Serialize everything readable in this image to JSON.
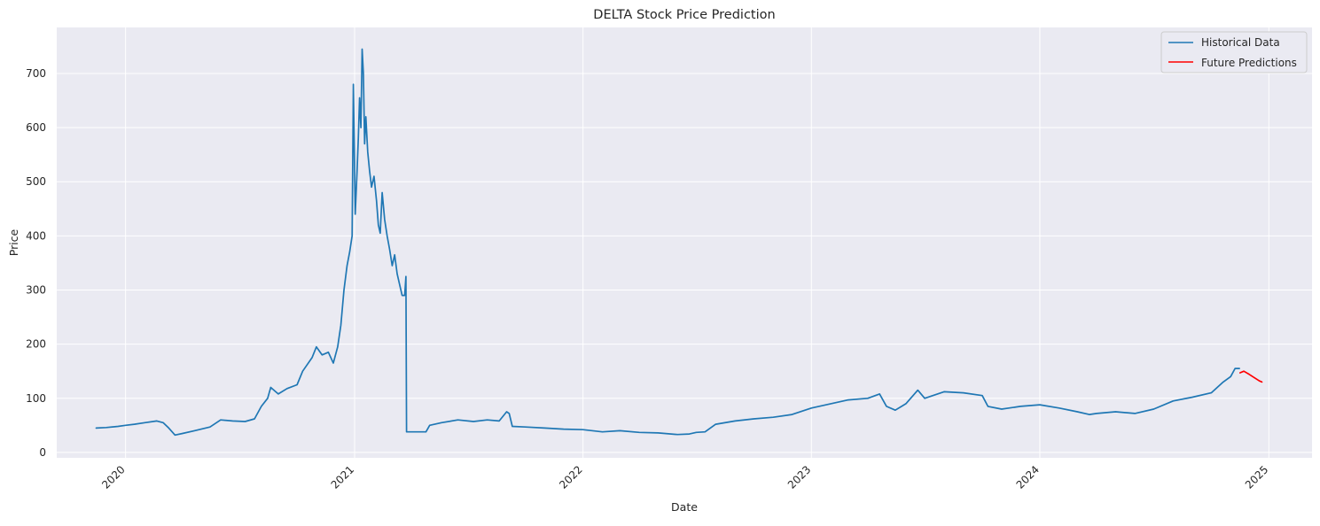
{
  "chart_data": {
    "type": "line",
    "title": "DELTA Stock Price Prediction",
    "xlabel": "Date",
    "ylabel": "Price",
    "x_type": "date",
    "xlim": [
      "2019-09-13",
      "2025-03-11"
    ],
    "ylim": [
      -10,
      785
    ],
    "x_ticks": [
      {
        "date": "2020-01-01",
        "label": "2020"
      },
      {
        "date": "2021-01-01",
        "label": "2021"
      },
      {
        "date": "2022-01-01",
        "label": "2022"
      },
      {
        "date": "2023-01-01",
        "label": "2023"
      },
      {
        "date": "2024-01-01",
        "label": "2024"
      },
      {
        "date": "2025-01-01",
        "label": "2025"
      }
    ],
    "y_ticks": [
      0,
      100,
      200,
      300,
      400,
      500,
      600,
      700
    ],
    "grid": true,
    "legend_position": "upper right",
    "series": [
      {
        "name": "Historical Data",
        "color": "#1f77b4",
        "points": [
          [
            "2019-11-15",
            45
          ],
          [
            "2019-12-01",
            46
          ],
          [
            "2019-12-20",
            48
          ],
          [
            "2020-01-01",
            50
          ],
          [
            "2020-01-15",
            52
          ],
          [
            "2020-02-01",
            55
          ],
          [
            "2020-02-20",
            58
          ],
          [
            "2020-03-01",
            55
          ],
          [
            "2020-03-10",
            45
          ],
          [
            "2020-03-20",
            32
          ],
          [
            "2020-04-01",
            35
          ],
          [
            "2020-04-20",
            40
          ],
          [
            "2020-05-15",
            47
          ],
          [
            "2020-06-01",
            60
          ],
          [
            "2020-06-20",
            58
          ],
          [
            "2020-07-10",
            57
          ],
          [
            "2020-07-25",
            62
          ],
          [
            "2020-08-05",
            85
          ],
          [
            "2020-08-15",
            100
          ],
          [
            "2020-08-20",
            120
          ],
          [
            "2020-09-01",
            108
          ],
          [
            "2020-09-15",
            118
          ],
          [
            "2020-10-01",
            125
          ],
          [
            "2020-10-10",
            150
          ],
          [
            "2020-10-25",
            175
          ],
          [
            "2020-11-01",
            195
          ],
          [
            "2020-11-10",
            180
          ],
          [
            "2020-11-20",
            185
          ],
          [
            "2020-11-28",
            165
          ],
          [
            "2020-12-05",
            195
          ],
          [
            "2020-12-10",
            235
          ],
          [
            "2020-12-15",
            300
          ],
          [
            "2020-12-20",
            345
          ],
          [
            "2020-12-24",
            370
          ],
          [
            "2020-12-28",
            400
          ],
          [
            "2020-12-30",
            680
          ],
          [
            "2021-01-02",
            440
          ],
          [
            "2021-01-05",
            520
          ],
          [
            "2021-01-07",
            580
          ],
          [
            "2021-01-09",
            655
          ],
          [
            "2021-01-11",
            600
          ],
          [
            "2021-01-13",
            745
          ],
          [
            "2021-01-15",
            700
          ],
          [
            "2021-01-17",
            570
          ],
          [
            "2021-01-19",
            620
          ],
          [
            "2021-01-22",
            555
          ],
          [
            "2021-01-25",
            520
          ],
          [
            "2021-01-28",
            490
          ],
          [
            "2021-02-01",
            510
          ],
          [
            "2021-02-05",
            465
          ],
          [
            "2021-02-08",
            420
          ],
          [
            "2021-02-11",
            405
          ],
          [
            "2021-02-14",
            480
          ],
          [
            "2021-02-18",
            430
          ],
          [
            "2021-02-22",
            400
          ],
          [
            "2021-02-26",
            375
          ],
          [
            "2021-03-02",
            345
          ],
          [
            "2021-03-06",
            365
          ],
          [
            "2021-03-10",
            330
          ],
          [
            "2021-03-14",
            310
          ],
          [
            "2021-03-18",
            290
          ],
          [
            "2021-03-22",
            290
          ],
          [
            "2021-03-24",
            325
          ],
          [
            "2021-03-25",
            38
          ],
          [
            "2021-04-10",
            38
          ],
          [
            "2021-04-25",
            38
          ],
          [
            "2021-05-01",
            50
          ],
          [
            "2021-05-20",
            55
          ],
          [
            "2021-06-15",
            60
          ],
          [
            "2021-07-10",
            57
          ],
          [
            "2021-08-01",
            60
          ],
          [
            "2021-08-20",
            58
          ],
          [
            "2021-09-01",
            75
          ],
          [
            "2021-09-05",
            72
          ],
          [
            "2021-09-10",
            48
          ],
          [
            "2021-10-01",
            47
          ],
          [
            "2021-11-01",
            45
          ],
          [
            "2021-12-01",
            43
          ],
          [
            "2022-01-01",
            42
          ],
          [
            "2022-02-01",
            38
          ],
          [
            "2022-03-01",
            40
          ],
          [
            "2022-04-01",
            37
          ],
          [
            "2022-05-01",
            36
          ],
          [
            "2022-06-01",
            33
          ],
          [
            "2022-06-20",
            34
          ],
          [
            "2022-07-01",
            37
          ],
          [
            "2022-07-15",
            38
          ],
          [
            "2022-08-01",
            52
          ],
          [
            "2022-09-01",
            58
          ],
          [
            "2022-10-01",
            62
          ],
          [
            "2022-11-01",
            65
          ],
          [
            "2022-12-01",
            70
          ],
          [
            "2023-01-01",
            82
          ],
          [
            "2023-02-01",
            90
          ],
          [
            "2023-03-01",
            97
          ],
          [
            "2023-04-01",
            100
          ],
          [
            "2023-04-20",
            108
          ],
          [
            "2023-05-01",
            85
          ],
          [
            "2023-05-15",
            78
          ],
          [
            "2023-06-01",
            90
          ],
          [
            "2023-06-20",
            115
          ],
          [
            "2023-07-01",
            100
          ],
          [
            "2023-08-01",
            112
          ],
          [
            "2023-09-01",
            110
          ],
          [
            "2023-10-01",
            105
          ],
          [
            "2023-10-10",
            85
          ],
          [
            "2023-11-01",
            80
          ],
          [
            "2023-12-01",
            85
          ],
          [
            "2024-01-01",
            88
          ],
          [
            "2024-02-01",
            82
          ],
          [
            "2024-03-01",
            75
          ],
          [
            "2024-03-20",
            70
          ],
          [
            "2024-04-01",
            72
          ],
          [
            "2024-05-01",
            75
          ],
          [
            "2024-06-01",
            72
          ],
          [
            "2024-07-01",
            80
          ],
          [
            "2024-08-01",
            95
          ],
          [
            "2024-09-01",
            102
          ],
          [
            "2024-10-01",
            110
          ],
          [
            "2024-10-20",
            130
          ],
          [
            "2024-11-01",
            140
          ],
          [
            "2024-11-08",
            155
          ],
          [
            "2024-11-15",
            155
          ]
        ]
      },
      {
        "name": "Future Predictions",
        "color": "#ff0000",
        "points": [
          [
            "2024-11-16",
            147
          ],
          [
            "2024-11-22",
            150
          ],
          [
            "2024-12-01",
            144
          ],
          [
            "2024-12-10",
            137
          ],
          [
            "2024-12-17",
            132
          ],
          [
            "2024-12-21",
            130
          ]
        ]
      }
    ]
  }
}
